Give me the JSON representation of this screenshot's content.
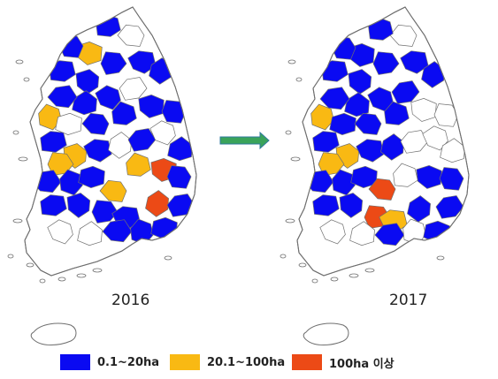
{
  "maps": [
    {
      "year": "2016"
    },
    {
      "year": "2017"
    }
  ],
  "legend": [
    {
      "label": "0.1~20ha",
      "color": "#0a0af2"
    },
    {
      "label": "20.1~100ha",
      "color": "#f9b913"
    },
    {
      "label": "100ha 이상",
      "color": "#ec4a16"
    }
  ],
  "colors": {
    "none": "#ffffff",
    "outline": "#6f6f6f",
    "arrow_fill": "#3aa35a",
    "arrow_stroke": "#2f7a9c"
  },
  "icons": [
    "right-arrow-icon"
  ]
}
